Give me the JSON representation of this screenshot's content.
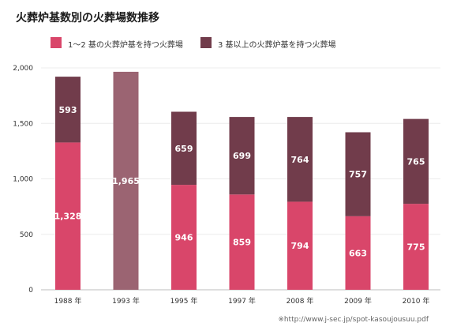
{
  "chart_data": {
    "type": "bar",
    "stacked": true,
    "title": "火葬炉基数別の火葬場数推移",
    "categories": [
      "1988 年",
      "1993 年",
      "1995 年",
      "1997 年",
      "2008 年",
      "2009 年",
      "2010 年"
    ],
    "series": [
      {
        "name": "1～2 基の火葬炉基を持つ火葬場",
        "color": "#d9466a",
        "values": [
          1328,
          null,
          946,
          859,
          794,
          663,
          775
        ]
      },
      {
        "name": "3 基以上の火葬炉基を持つ火葬場",
        "color": "#713c4b",
        "values": [
          593,
          null,
          659,
          699,
          764,
          757,
          765
        ]
      }
    ],
    "totals_only": [
      {
        "category": "1993 年",
        "value": 1965,
        "color": "#9b6472"
      }
    ],
    "ylim": [
      0,
      2000
    ],
    "yticks": [
      0,
      500,
      1000,
      1500,
      2000
    ],
    "ytick_labels": [
      "0",
      "500",
      "1,000",
      "1,500",
      "2,000"
    ],
    "grid": true,
    "legend_position": "top-left",
    "source": "※http://www.j-sec.jp/spot-kasoujousuu.pdf"
  }
}
